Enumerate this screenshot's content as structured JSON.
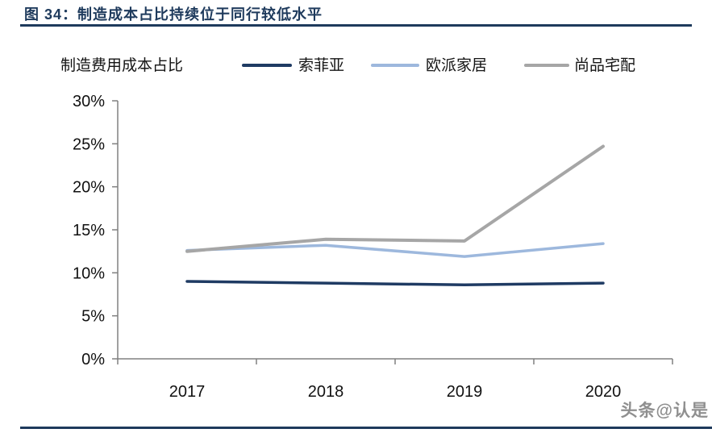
{
  "header": {
    "title": "图 34：制造成本占比持续位于同行较低水平"
  },
  "watermark": {
    "text": "头条@认是"
  },
  "colors": {
    "accent_navy": "#1e3a5c",
    "axis_gray": "#808080",
    "tick_text": "#111111"
  },
  "chart_data": {
    "type": "line",
    "title": "制造费用成本占比",
    "categories": [
      "2017",
      "2018",
      "2019",
      "2020"
    ],
    "series": [
      {
        "name": "索菲亚",
        "color": "#1f3b63",
        "values": [
          9.0,
          8.8,
          8.6,
          8.8
        ]
      },
      {
        "name": "欧派家居",
        "color": "#9db8dd",
        "values": [
          12.6,
          13.2,
          11.9,
          13.4
        ]
      },
      {
        "name": "尚品宅配",
        "color": "#a6a6a6",
        "values": [
          12.5,
          13.9,
          13.7,
          24.7
        ]
      }
    ],
    "ylim": [
      0,
      30
    ],
    "ytick_step": 5,
    "ytick_labels": [
      "0%",
      "5%",
      "10%",
      "15%",
      "20%",
      "25%",
      "30%"
    ],
    "xlabel": "",
    "ylabel": "",
    "grid": false,
    "legend_position": "top"
  }
}
